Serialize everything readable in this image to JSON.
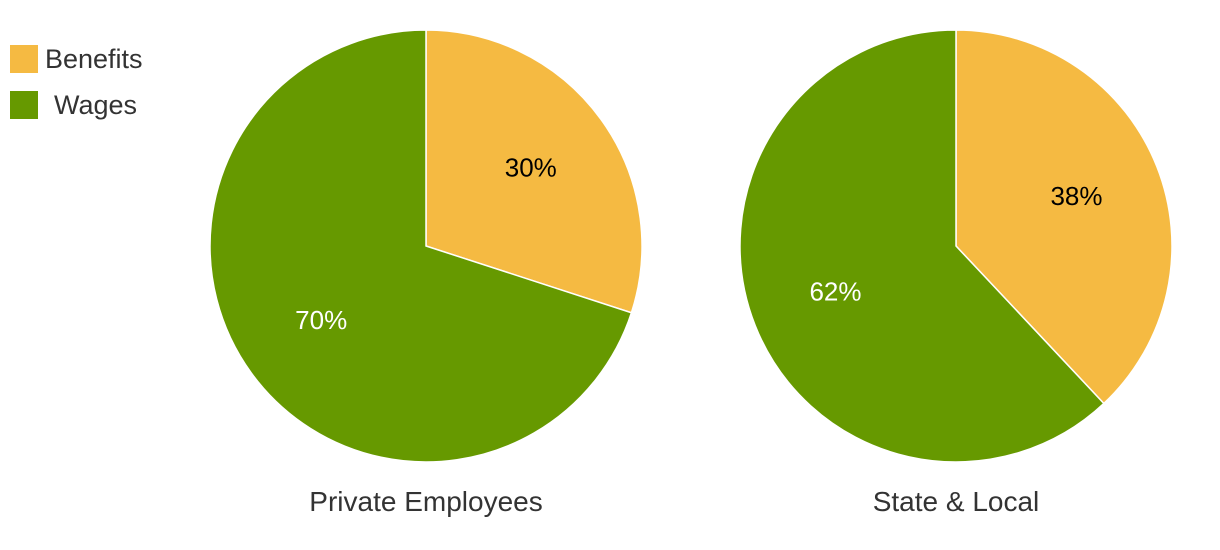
{
  "chart_data": {
    "type": "pie",
    "legend": {
      "placement": "top-left",
      "entries": [
        {
          "label": "Benefits",
          "color": "#F5BA42"
        },
        {
          "label": "Wages",
          "color": "#669900"
        }
      ]
    },
    "pies": [
      {
        "title": "Private Employees",
        "slices": [
          {
            "label": "Benefits",
            "value": 30,
            "display": "30%",
            "color": "#F5BA42",
            "label_color": "#000000"
          },
          {
            "label": "Wages",
            "value": 70,
            "display": "70%",
            "color": "#669900",
            "label_color": "#ffffff"
          }
        ]
      },
      {
        "title": "State & Local",
        "slices": [
          {
            "label": "Benefits",
            "value": 38,
            "display": "38%",
            "color": "#F5BA42",
            "label_color": "#000000"
          },
          {
            "label": "Wages",
            "value": 62,
            "display": "62%",
            "color": "#669900",
            "label_color": "#ffffff"
          }
        ]
      }
    ]
  }
}
